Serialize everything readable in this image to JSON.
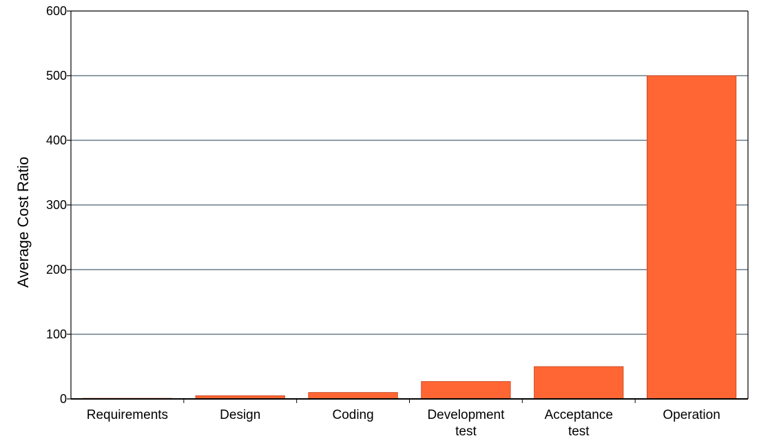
{
  "chart_data": {
    "type": "bar",
    "categories": [
      "Requirements",
      "Design",
      "Coding",
      "Development test",
      "Acceptance test",
      "Operation"
    ],
    "category_lines": [
      [
        "Requirements"
      ],
      [
        "Design"
      ],
      [
        "Coding"
      ],
      [
        "Development",
        "test"
      ],
      [
        "Acceptance",
        "test"
      ],
      [
        "Operation"
      ]
    ],
    "values": [
      1,
      5,
      10,
      27,
      50,
      500
    ],
    "ylabel": "Average Cost Ratio",
    "xlabel": "",
    "ylim": [
      0,
      600
    ],
    "yticks": [
      0,
      100,
      200,
      300,
      400,
      500,
      600
    ],
    "grid": true,
    "legend": "none",
    "bar_color": "#ff6633",
    "bar_edge_color": "#c0401a",
    "grid_color": "#1f3a4d"
  }
}
